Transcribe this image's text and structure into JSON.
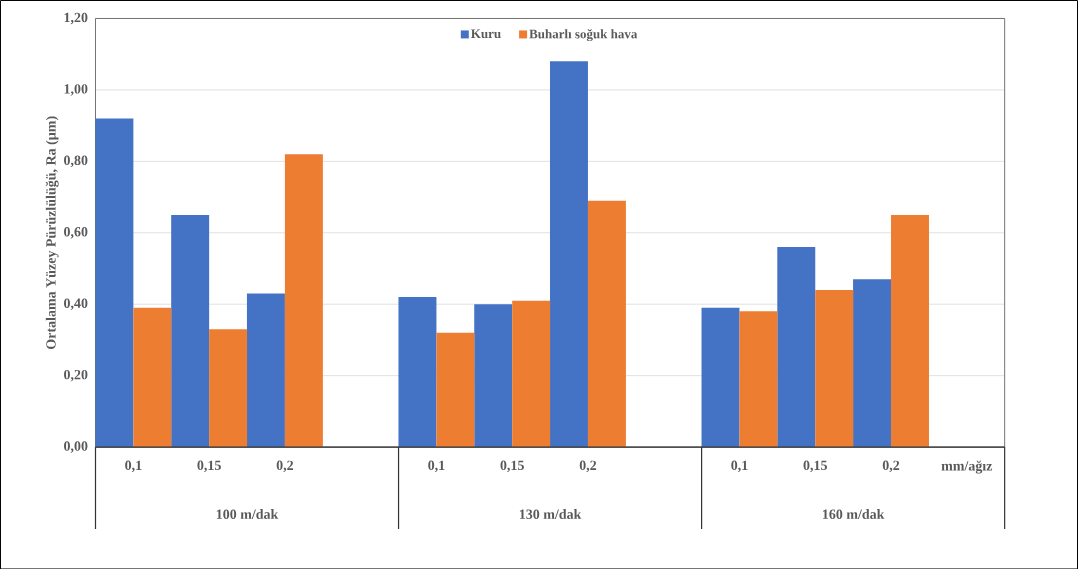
{
  "chart_data": {
    "type": "bar",
    "ylabel": "Ortalama Yüzey Pürüzlülüğü, Ra (µm)",
    "categories": [
      "0,1",
      "0,15",
      "0,2",
      null,
      "0,1",
      "0,15",
      "0,2",
      null,
      "0,1",
      "0,15",
      "0,2",
      "mm/ağız"
    ],
    "series": [
      {
        "name": "Kuru",
        "color": "#4472c4",
        "values": [
          0.92,
          0.65,
          0.43,
          null,
          0.42,
          0.4,
          1.08,
          null,
          0.39,
          0.56,
          0.47,
          null
        ]
      },
      {
        "name": "Buharlı soğuk hava",
        "color": "#ed7d31",
        "values": [
          0.39,
          0.33,
          0.82,
          null,
          0.32,
          0.41,
          0.69,
          null,
          0.38,
          0.44,
          0.65,
          null
        ]
      }
    ],
    "annotations": [
      "100 m/dak",
      "130 m/dak",
      "160 m/dak"
    ],
    "ylim": [
      0,
      1.2
    ],
    "yticks": [
      {
        "value": 0,
        "label": "0,00"
      },
      {
        "value": 0.2,
        "label": "0,20"
      },
      {
        "value": 0.4,
        "label": "0,40"
      },
      {
        "value": 0.6,
        "label": "0,60"
      },
      {
        "value": 0.8,
        "label": "0,80"
      },
      {
        "value": 1.0,
        "label": "1,00"
      },
      {
        "value": 1.2,
        "label": "1,20"
      }
    ],
    "grid": "y",
    "legend": "top"
  }
}
